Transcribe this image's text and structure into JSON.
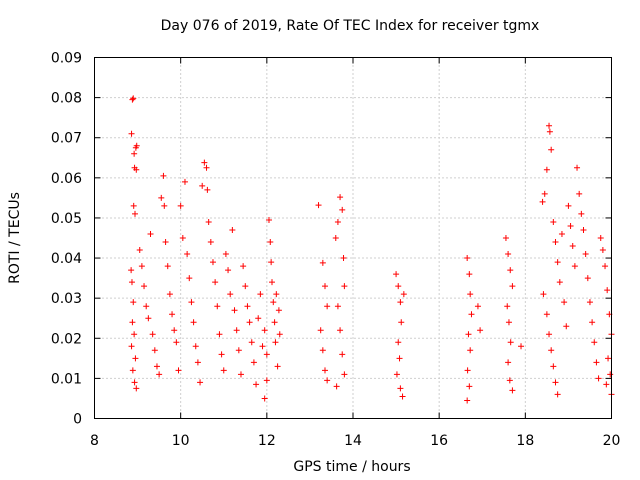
{
  "chart_data": {
    "type": "scatter",
    "title": "Day 076 of 2019, Rate Of TEC Index for receiver tgmx",
    "xlabel": "GPS time / hours",
    "ylabel": "ROTI / TECUs",
    "xlim": [
      8,
      20
    ],
    "ylim": [
      0,
      0.09
    ],
    "x_ticks": [
      "8",
      "10",
      "12",
      "14",
      "16",
      "18",
      "20"
    ],
    "y_ticks": [
      "0",
      "0.01",
      "0.02",
      "0.03",
      "0.04",
      "0.05",
      "0.06",
      "0.07",
      "0.08",
      "0.09"
    ],
    "grid": true,
    "marker": "plus",
    "color": "#ff0000",
    "series": [
      {
        "name": "ROTI",
        "points": [
          [
            8.88,
            0.0795
          ],
          [
            8.9,
            0.0798
          ],
          [
            8.86,
            0.071
          ],
          [
            8.92,
            0.066
          ],
          [
            8.96,
            0.0675
          ],
          [
            8.98,
            0.068
          ],
          [
            8.93,
            0.0625
          ],
          [
            8.97,
            0.062
          ],
          [
            8.91,
            0.053
          ],
          [
            8.94,
            0.051
          ],
          [
            8.85,
            0.037
          ],
          [
            8.87,
            0.034
          ],
          [
            8.9,
            0.029
          ],
          [
            8.88,
            0.024
          ],
          [
            8.92,
            0.021
          ],
          [
            8.86,
            0.018
          ],
          [
            8.95,
            0.015
          ],
          [
            8.89,
            0.012
          ],
          [
            8.93,
            0.009
          ],
          [
            8.97,
            0.0075
          ],
          [
            9.05,
            0.042
          ],
          [
            9.1,
            0.038
          ],
          [
            9.15,
            0.033
          ],
          [
            9.2,
            0.028
          ],
          [
            9.25,
            0.025
          ],
          [
            9.3,
            0.046
          ],
          [
            9.35,
            0.021
          ],
          [
            9.4,
            0.017
          ],
          [
            9.45,
            0.013
          ],
          [
            9.5,
            0.011
          ],
          [
            9.55,
            0.055
          ],
          [
            9.6,
            0.0605
          ],
          [
            9.62,
            0.053
          ],
          [
            9.65,
            0.044
          ],
          [
            9.7,
            0.038
          ],
          [
            9.75,
            0.031
          ],
          [
            9.8,
            0.026
          ],
          [
            9.85,
            0.022
          ],
          [
            9.9,
            0.019
          ],
          [
            9.95,
            0.012
          ],
          [
            10.0,
            0.053
          ],
          [
            10.05,
            0.045
          ],
          [
            10.1,
            0.059
          ],
          [
            10.15,
            0.041
          ],
          [
            10.2,
            0.035
          ],
          [
            10.25,
            0.029
          ],
          [
            10.3,
            0.024
          ],
          [
            10.35,
            0.018
          ],
          [
            10.4,
            0.014
          ],
          [
            10.45,
            0.009
          ],
          [
            10.5,
            0.058
          ],
          [
            10.55,
            0.0638
          ],
          [
            10.6,
            0.0625
          ],
          [
            10.62,
            0.057
          ],
          [
            10.65,
            0.049
          ],
          [
            10.7,
            0.044
          ],
          [
            10.75,
            0.039
          ],
          [
            10.8,
            0.034
          ],
          [
            10.85,
            0.028
          ],
          [
            10.9,
            0.021
          ],
          [
            10.95,
            0.016
          ],
          [
            11.0,
            0.012
          ],
          [
            11.05,
            0.041
          ],
          [
            11.1,
            0.037
          ],
          [
            11.15,
            0.031
          ],
          [
            11.2,
            0.047
          ],
          [
            11.25,
            0.027
          ],
          [
            11.3,
            0.022
          ],
          [
            11.35,
            0.017
          ],
          [
            11.4,
            0.011
          ],
          [
            11.45,
            0.038
          ],
          [
            11.5,
            0.033
          ],
          [
            11.55,
            0.028
          ],
          [
            11.6,
            0.024
          ],
          [
            11.65,
            0.019
          ],
          [
            11.7,
            0.014
          ],
          [
            11.75,
            0.0085
          ],
          [
            11.8,
            0.025
          ],
          [
            11.85,
            0.031
          ],
          [
            11.9,
            0.018
          ],
          [
            11.95,
            0.022
          ],
          [
            12.0,
            0.016
          ],
          [
            12.05,
            0.0495
          ],
          [
            12.08,
            0.044
          ],
          [
            12.1,
            0.039
          ],
          [
            12.12,
            0.034
          ],
          [
            12.15,
            0.029
          ],
          [
            12.18,
            0.024
          ],
          [
            12.2,
            0.019
          ],
          [
            12.25,
            0.013
          ],
          [
            11.95,
            0.005
          ],
          [
            12.0,
            0.0095
          ],
          [
            12.22,
            0.031
          ],
          [
            12.28,
            0.027
          ],
          [
            12.3,
            0.021
          ],
          [
            13.2,
            0.0532
          ],
          [
            13.3,
            0.0388
          ],
          [
            13.35,
            0.033
          ],
          [
            13.4,
            0.028
          ],
          [
            13.25,
            0.022
          ],
          [
            13.3,
            0.017
          ],
          [
            13.35,
            0.012
          ],
          [
            13.4,
            0.0095
          ],
          [
            13.6,
            0.045
          ],
          [
            13.65,
            0.049
          ],
          [
            13.7,
            0.0552
          ],
          [
            13.75,
            0.052
          ],
          [
            13.78,
            0.04
          ],
          [
            13.8,
            0.033
          ],
          [
            13.65,
            0.028
          ],
          [
            13.7,
            0.022
          ],
          [
            13.75,
            0.016
          ],
          [
            13.8,
            0.011
          ],
          [
            13.62,
            0.008
          ],
          [
            15.0,
            0.036
          ],
          [
            15.05,
            0.033
          ],
          [
            15.1,
            0.029
          ],
          [
            15.12,
            0.024
          ],
          [
            15.05,
            0.019
          ],
          [
            15.08,
            0.015
          ],
          [
            15.02,
            0.011
          ],
          [
            15.1,
            0.0075
          ],
          [
            15.15,
            0.0055
          ],
          [
            15.18,
            0.031
          ],
          [
            16.65,
            0.04
          ],
          [
            16.7,
            0.036
          ],
          [
            16.72,
            0.031
          ],
          [
            16.75,
            0.026
          ],
          [
            16.68,
            0.021
          ],
          [
            16.72,
            0.017
          ],
          [
            16.66,
            0.012
          ],
          [
            16.7,
            0.008
          ],
          [
            16.65,
            0.0045
          ],
          [
            16.9,
            0.028
          ],
          [
            16.95,
            0.022
          ],
          [
            17.55,
            0.045
          ],
          [
            17.6,
            0.041
          ],
          [
            17.65,
            0.037
          ],
          [
            17.7,
            0.033
          ],
          [
            17.58,
            0.028
          ],
          [
            17.62,
            0.024
          ],
          [
            17.66,
            0.019
          ],
          [
            17.6,
            0.014
          ],
          [
            17.64,
            0.0095
          ],
          [
            17.7,
            0.007
          ],
          [
            17.9,
            0.018
          ],
          [
            18.4,
            0.054
          ],
          [
            18.45,
            0.056
          ],
          [
            18.5,
            0.062
          ],
          [
            18.55,
            0.073
          ],
          [
            18.57,
            0.0715
          ],
          [
            18.6,
            0.067
          ],
          [
            18.65,
            0.049
          ],
          [
            18.7,
            0.044
          ],
          [
            18.75,
            0.039
          ],
          [
            18.8,
            0.034
          ],
          [
            18.42,
            0.031
          ],
          [
            18.5,
            0.026
          ],
          [
            18.55,
            0.021
          ],
          [
            18.6,
            0.017
          ],
          [
            18.65,
            0.013
          ],
          [
            18.7,
            0.009
          ],
          [
            18.75,
            0.006
          ],
          [
            18.85,
            0.046
          ],
          [
            18.9,
            0.029
          ],
          [
            18.95,
            0.023
          ],
          [
            19.0,
            0.053
          ],
          [
            19.05,
            0.048
          ],
          [
            19.1,
            0.043
          ],
          [
            19.15,
            0.038
          ],
          [
            19.2,
            0.0625
          ],
          [
            19.25,
            0.056
          ],
          [
            19.3,
            0.051
          ],
          [
            19.35,
            0.047
          ],
          [
            19.4,
            0.041
          ],
          [
            19.45,
            0.035
          ],
          [
            19.5,
            0.029
          ],
          [
            19.55,
            0.024
          ],
          [
            19.6,
            0.019
          ],
          [
            19.65,
            0.014
          ],
          [
            19.7,
            0.01
          ],
          [
            19.75,
            0.045
          ],
          [
            19.8,
            0.042
          ],
          [
            19.85,
            0.038
          ],
          [
            19.9,
            0.032
          ],
          [
            19.95,
            0.026
          ],
          [
            20.0,
            0.021
          ],
          [
            19.92,
            0.015
          ],
          [
            19.97,
            0.011
          ],
          [
            19.88,
            0.0085
          ],
          [
            20.0,
            0.006
          ]
        ]
      }
    ]
  }
}
